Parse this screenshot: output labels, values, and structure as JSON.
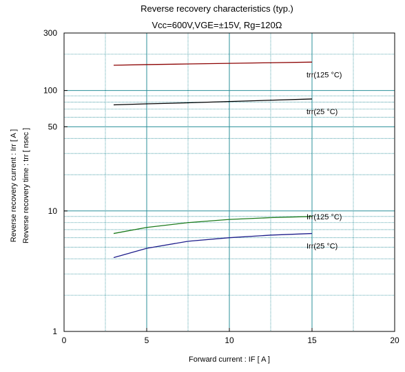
{
  "chart_data": {
    "type": "line",
    "title": "Reverse recovery characteristics  (typ.)",
    "subtitle": "Vcc=600V,VGE=±15V, Rg=120Ω",
    "xlabel": "Forward current  :  IF  [ A ]",
    "ylabel": [
      "Reverse recovery current  :  Irr  [ A ]",
      "Reverse recovery time  :  trr  [ nsec ]"
    ],
    "xlim": [
      0,
      20
    ],
    "ylim": [
      1,
      300
    ],
    "yscale": "log",
    "grid": true,
    "x_ticks": [
      0,
      5,
      10,
      15,
      20
    ],
    "y_ticks": [
      1,
      10,
      50,
      100,
      300
    ],
    "x": [
      3,
      5,
      7.5,
      10,
      12.5,
      15
    ],
    "series": [
      {
        "name": "trr(125 °C)",
        "color": "#8b0000",
        "values": [
          162,
          164,
          166,
          168,
          170,
          172
        ]
      },
      {
        "name": "trr(25 °C)",
        "color": "#000000",
        "values": [
          76,
          77.5,
          79,
          81,
          83,
          85
        ]
      },
      {
        "name": "Irr(125 °C)",
        "color": "#1a7a1a",
        "values": [
          6.5,
          7.3,
          8.0,
          8.5,
          8.8,
          9.0
        ]
      },
      {
        "name": "Irr(25 °C)",
        "color": "#1c1c8a",
        "values": [
          4.1,
          4.9,
          5.6,
          6.0,
          6.3,
          6.5
        ]
      }
    ]
  }
}
